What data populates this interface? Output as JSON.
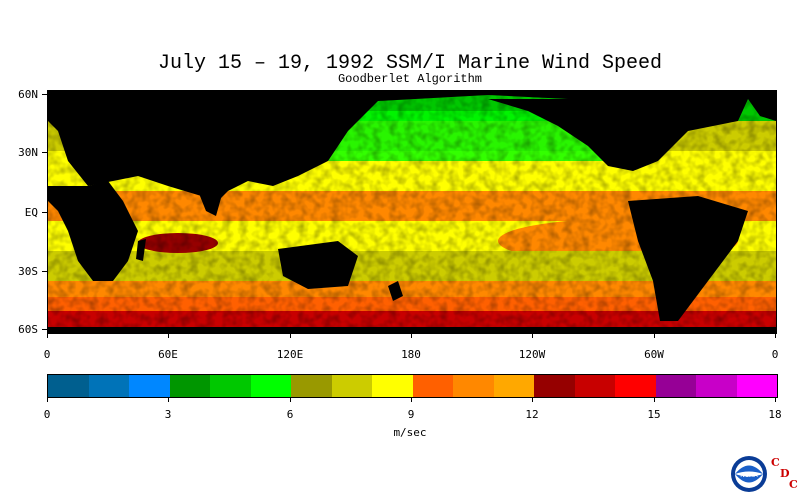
{
  "title": "July 15 – 19, 1992 SSM/I Marine Wind Speed",
  "subtitle": "Goodberlet Algorithm",
  "latitude_labels": [
    "60N",
    "30N",
    "EQ",
    "30S",
    "60S"
  ],
  "longitude_labels": [
    "0",
    "60E",
    "120E",
    "180",
    "120W",
    "60W",
    "0"
  ],
  "colorbar": {
    "tick_labels": [
      "0",
      "3",
      "6",
      "9",
      "12",
      "15",
      "18"
    ],
    "unit": "m/sec",
    "colors": [
      "#005f8f",
      "#0073b8",
      "#0087ff",
      "#009600",
      "#00c800",
      "#00ff00",
      "#999900",
      "#cccc00",
      "#ffff00",
      "#ff6000",
      "#ff8800",
      "#ffa800",
      "#960000",
      "#c80000",
      "#ff0000",
      "#960096",
      "#c800c8",
      "#ff00ff"
    ]
  },
  "logo": {
    "text": "NOAA",
    "letters": [
      "C",
      "D",
      "C"
    ]
  }
}
